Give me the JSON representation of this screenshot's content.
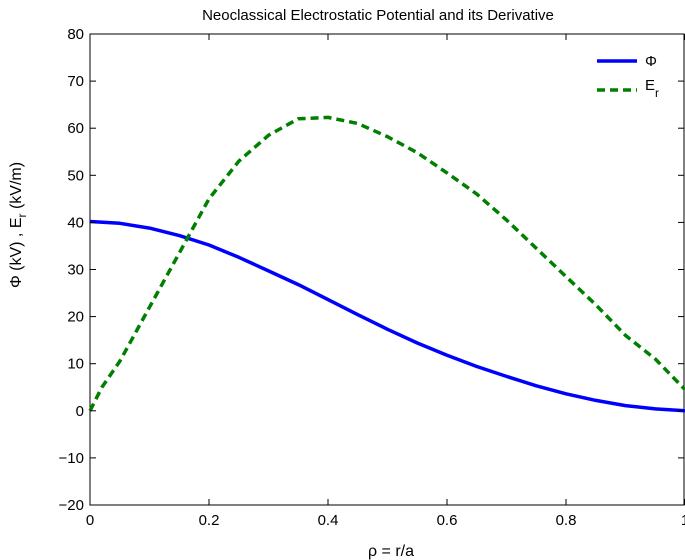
{
  "chart_data": {
    "type": "line",
    "title": "Neoclassical Electrostatic Potential and its Derivative",
    "xlabel": "ρ = r/a",
    "ylabel_main": "Φ (kV) , E",
    "ylabel_sub": "r",
    "ylabel_tail": " (kV/m)",
    "xlim": [
      0,
      1
    ],
    "ylim": [
      -20,
      80
    ],
    "x_ticks": [
      0,
      0.2,
      0.4,
      0.6,
      0.8,
      1
    ],
    "x_tick_labels": [
      "0",
      "0.2",
      "0.4",
      "0.6",
      "0.8",
      "1"
    ],
    "y_ticks": [
      -20,
      -10,
      0,
      10,
      20,
      30,
      40,
      50,
      60,
      70,
      80
    ],
    "y_tick_labels": [
      "−20",
      "−10",
      "0",
      "10",
      "20",
      "30",
      "40",
      "50",
      "60",
      "70",
      "80"
    ],
    "grid": false,
    "legend_position": "top-right",
    "series": [
      {
        "legend_main": "Φ",
        "legend_sub": "",
        "color": "#0000ff",
        "style": "solid",
        "x": [
          0,
          0.05,
          0.1,
          0.15,
          0.2,
          0.25,
          0.3,
          0.35,
          0.4,
          0.45,
          0.5,
          0.55,
          0.6,
          0.65,
          0.7,
          0.75,
          0.8,
          0.85,
          0.9,
          0.95,
          1.0
        ],
        "y": [
          40.2,
          39.8,
          38.8,
          37.2,
          35.2,
          32.6,
          29.7,
          26.8,
          23.6,
          20.4,
          17.3,
          14.4,
          11.8,
          9.4,
          7.3,
          5.3,
          3.6,
          2.2,
          1.1,
          0.4,
          0.0
        ]
      },
      {
        "legend_main": "E",
        "legend_sub": "r",
        "color": "#007f00",
        "style": "dashed",
        "x": [
          0,
          0.02,
          0.05,
          0.1,
          0.15,
          0.2,
          0.25,
          0.3,
          0.35,
          0.4,
          0.45,
          0.5,
          0.55,
          0.6,
          0.65,
          0.7,
          0.75,
          0.8,
          0.85,
          0.9,
          0.95,
          1.0
        ],
        "y": [
          0,
          5,
          10.5,
          22,
          33.5,
          45,
          53,
          58.5,
          62,
          62.3,
          61,
          58.2,
          54.8,
          50.5,
          46,
          40.5,
          34.5,
          28.5,
          22.5,
          16,
          11,
          4.5
        ]
      }
    ]
  }
}
